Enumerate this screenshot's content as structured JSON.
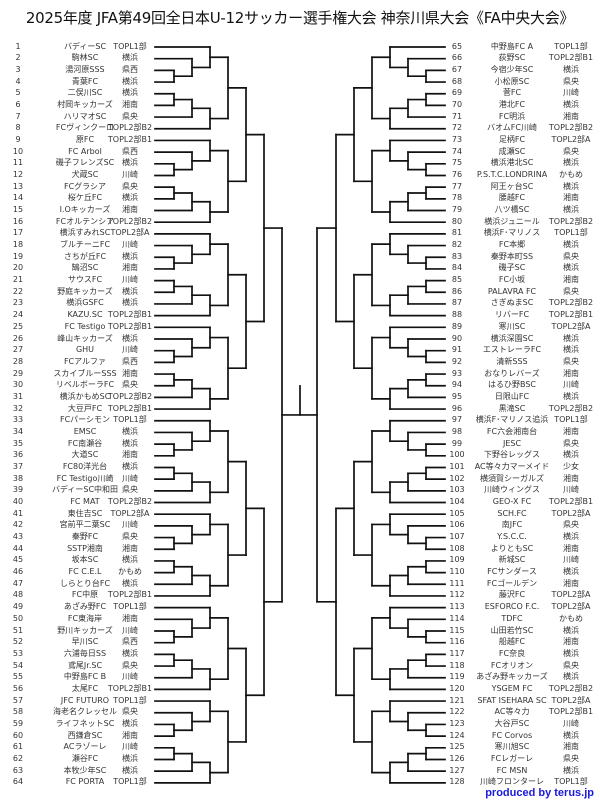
{
  "title": "2025年度 JFA第49回全日本U-12サッカー選手権大会 神奈川県大会《FA中央大会》",
  "footer": "produced by terus.jp",
  "left_teams": [
    {
      "no": "1",
      "name": "バディーSC",
      "league": "TOPL1部"
    },
    {
      "no": "2",
      "name": "駒林SC",
      "league": "横浜"
    },
    {
      "no": "3",
      "name": "湯河原SSS",
      "league": "県西"
    },
    {
      "no": "4",
      "name": "青葉FC",
      "league": "横浜"
    },
    {
      "no": "5",
      "name": "二俣川SC",
      "league": "横浜"
    },
    {
      "no": "6",
      "name": "村岡キッカーズ",
      "league": "湘南"
    },
    {
      "no": "7",
      "name": "ハリマオSC",
      "league": "県央"
    },
    {
      "no": "8",
      "name": "FCヴィンクーロ",
      "league": "TOPL2部B2"
    },
    {
      "no": "9",
      "name": "原FC",
      "league": "TOPL2部B1"
    },
    {
      "no": "10",
      "name": "FC Arbol",
      "league": "県西"
    },
    {
      "no": "11",
      "name": "磯子フレンズSC",
      "league": "横浜"
    },
    {
      "no": "12",
      "name": "犬蔵SC",
      "league": "川崎"
    },
    {
      "no": "13",
      "name": "FCグラシア",
      "league": "県央"
    },
    {
      "no": "14",
      "name": "桜ケ丘FC",
      "league": "横浜"
    },
    {
      "no": "15",
      "name": "I.Oキッカーズ",
      "league": "湘南"
    },
    {
      "no": "16",
      "name": "FCオルテンシア",
      "league": "TOPL2部B2"
    },
    {
      "no": "17",
      "name": "横浜すみれSC",
      "league": "TOPL2部A"
    },
    {
      "no": "18",
      "name": "ブルチーニFC",
      "league": "川崎"
    },
    {
      "no": "19",
      "name": "さちが丘FC",
      "league": "横浜"
    },
    {
      "no": "20",
      "name": "鵠沼SC",
      "league": "湘南"
    },
    {
      "no": "21",
      "name": "サウスFC",
      "league": "川崎"
    },
    {
      "no": "22",
      "name": "野庭キッカーズ",
      "league": "横浜"
    },
    {
      "no": "23",
      "name": "横浜GSFC",
      "league": "横浜"
    },
    {
      "no": "24",
      "name": "KAZU.SC",
      "league": "TOPL2部B1"
    },
    {
      "no": "25",
      "name": "FC Testigo",
      "league": "TOPL2部B1"
    },
    {
      "no": "26",
      "name": "峰山キッカーズ",
      "league": "横浜"
    },
    {
      "no": "27",
      "name": "GHU",
      "league": "川崎"
    },
    {
      "no": "28",
      "name": "FCアルファ",
      "league": "県西"
    },
    {
      "no": "29",
      "name": "スカイブルーSSS",
      "league": "湘南"
    },
    {
      "no": "30",
      "name": "リベルボーラFC",
      "league": "県央"
    },
    {
      "no": "31",
      "name": "横浜かもめSC",
      "league": "TOPL2部B2"
    },
    {
      "no": "32",
      "name": "大豆戸FC",
      "league": "TOPL2部B1"
    },
    {
      "no": "33",
      "name": "FCパーシモン",
      "league": "TOPL1部"
    },
    {
      "no": "34",
      "name": "EMSC",
      "league": "横浜"
    },
    {
      "no": "35",
      "name": "FC南瀬谷",
      "league": "横浜"
    },
    {
      "no": "36",
      "name": "大道SC",
      "league": "湘南"
    },
    {
      "no": "37",
      "name": "FC80洋光台",
      "league": "横浜"
    },
    {
      "no": "38",
      "name": "FC Testigo川崎",
      "league": "川崎"
    },
    {
      "no": "39",
      "name": "バディーSC中和田",
      "league": "県央"
    },
    {
      "no": "40",
      "name": "FC MAT",
      "league": "TOPL2部B2"
    },
    {
      "no": "41",
      "name": "東住吉SC",
      "league": "TOPL2部A"
    },
    {
      "no": "42",
      "name": "宮前平二葉SC",
      "league": "川崎"
    },
    {
      "no": "43",
      "name": "秦野FC",
      "league": "県央"
    },
    {
      "no": "44",
      "name": "SSTP湘南",
      "league": "湘南"
    },
    {
      "no": "45",
      "name": "坂本SC",
      "league": "横浜"
    },
    {
      "no": "46",
      "name": "FC C.E.L",
      "league": "かもめ"
    },
    {
      "no": "47",
      "name": "しらとり台FC",
      "league": "横浜"
    },
    {
      "no": "48",
      "name": "FC中原",
      "league": "TOPL2部B1"
    },
    {
      "no": "49",
      "name": "あざみ野FC",
      "league": "TOPL1部"
    },
    {
      "no": "50",
      "name": "FC東海岸",
      "league": "湘南"
    },
    {
      "no": "51",
      "name": "野川キッカーズ",
      "league": "川崎"
    },
    {
      "no": "52",
      "name": "早川SC",
      "league": "県西"
    },
    {
      "no": "53",
      "name": "六浦毎日SS",
      "league": "横浜"
    },
    {
      "no": "54",
      "name": "鳶尾Jr.SC",
      "league": "県央"
    },
    {
      "no": "55",
      "name": "中野島FC B",
      "league": "川崎"
    },
    {
      "no": "56",
      "name": "太尾FC",
      "league": "TOPL2部B1"
    },
    {
      "no": "57",
      "name": "JFC FUTURO",
      "league": "TOPL1部"
    },
    {
      "no": "58",
      "name": "海老名クレッセル",
      "league": "県央"
    },
    {
      "no": "59",
      "name": "ライフネットSC",
      "league": "横浜"
    },
    {
      "no": "60",
      "name": "西鎌倉SC",
      "league": "湘南"
    },
    {
      "no": "61",
      "name": "ACラゾーレ",
      "league": "川崎"
    },
    {
      "no": "62",
      "name": "瀬谷FC",
      "league": "横浜"
    },
    {
      "no": "63",
      "name": "本牧少年SC",
      "league": "横浜"
    },
    {
      "no": "64",
      "name": "FC PORTA",
      "league": "TOPL1部"
    }
  ],
  "right_teams": [
    {
      "no": "65",
      "name": "中野島FC A",
      "league": "TOPL1部"
    },
    {
      "no": "66",
      "name": "荻野SC",
      "league": "TOPL2部B1"
    },
    {
      "no": "67",
      "name": "今宿少年SC",
      "league": "横浜"
    },
    {
      "no": "68",
      "name": "小松原SC",
      "league": "県央"
    },
    {
      "no": "69",
      "name": "菅FC",
      "league": "川崎"
    },
    {
      "no": "70",
      "name": "港北FC",
      "league": "横浜"
    },
    {
      "no": "71",
      "name": "FC明浜",
      "league": "湘南"
    },
    {
      "no": "72",
      "name": "バオムFC川崎",
      "league": "TOPL2部B2"
    },
    {
      "no": "73",
      "name": "足柄FC",
      "league": "TOPL2部A"
    },
    {
      "no": "74",
      "name": "成瀬SC",
      "league": "県央"
    },
    {
      "no": "75",
      "name": "横浜港北SC",
      "league": "横浜"
    },
    {
      "no": "76",
      "name": "P.S.T.C.LONDRINA",
      "league": "かもめ"
    },
    {
      "no": "77",
      "name": "阿王ヶ台SC",
      "league": "横浜"
    },
    {
      "no": "78",
      "name": "腰越FC",
      "league": "湘南"
    },
    {
      "no": "79",
      "name": "八ツ橋SC",
      "league": "横浜"
    },
    {
      "no": "80",
      "name": "横浜ジュニール",
      "league": "TOPL2部B2"
    },
    {
      "no": "81",
      "name": "横浜F･マリノス",
      "league": "TOPL1部"
    },
    {
      "no": "82",
      "name": "FC本郷",
      "league": "横浜"
    },
    {
      "no": "83",
      "name": "秦野本町SS",
      "league": "県央"
    },
    {
      "no": "84",
      "name": "磯子SC",
      "league": "横浜"
    },
    {
      "no": "85",
      "name": "FC小坂",
      "league": "湘南"
    },
    {
      "no": "86",
      "name": "PALAVRA FC",
      "league": "県央"
    },
    {
      "no": "87",
      "name": "さぎぬまSC",
      "league": "TOPL2部B2"
    },
    {
      "no": "88",
      "name": "リバーFC",
      "league": "TOPL2部B1"
    },
    {
      "no": "89",
      "name": "寒川SC",
      "league": "TOPL2部A"
    },
    {
      "no": "90",
      "name": "横浜深園SC",
      "league": "横浜"
    },
    {
      "no": "91",
      "name": "エストレーラFC",
      "league": "横浜"
    },
    {
      "no": "92",
      "name": "清新SSS",
      "league": "県央"
    },
    {
      "no": "93",
      "name": "おなりレバーズ",
      "league": "湘南"
    },
    {
      "no": "94",
      "name": "はるひ野BSC",
      "league": "川崎"
    },
    {
      "no": "95",
      "name": "日限山FC",
      "league": "横浜"
    },
    {
      "no": "96",
      "name": "黒滝SC",
      "league": "TOPL2部B2"
    },
    {
      "no": "97",
      "name": "横浜F･マリノス追浜",
      "league": "TOPL1部"
    },
    {
      "no": "98",
      "name": "FC六会湘南台",
      "league": "湘南"
    },
    {
      "no": "99",
      "name": "JESC",
      "league": "県央"
    },
    {
      "no": "100",
      "name": "下野谷レッグス",
      "league": "横浜"
    },
    {
      "no": "101",
      "name": "AC等々力マーメイド",
      "league": "少女"
    },
    {
      "no": "102",
      "name": "横須賀シーガルズ",
      "league": "湘南"
    },
    {
      "no": "103",
      "name": "川崎ウィングス",
      "league": "川崎"
    },
    {
      "no": "104",
      "name": "GEO-X FC",
      "league": "TOPL2部B1"
    },
    {
      "no": "105",
      "name": "SCH.FC",
      "league": "TOPL2部A"
    },
    {
      "no": "106",
      "name": "南JFC",
      "league": "県央"
    },
    {
      "no": "107",
      "name": "Y.S.C.C.",
      "league": "横浜"
    },
    {
      "no": "108",
      "name": "よりともSC",
      "league": "湘南"
    },
    {
      "no": "109",
      "name": "新城SC",
      "league": "川崎"
    },
    {
      "no": "110",
      "name": "FCサンダース",
      "league": "横浜"
    },
    {
      "no": "111",
      "name": "FCゴールデン",
      "league": "湘南"
    },
    {
      "no": "112",
      "name": "藤沢FC",
      "league": "TOPL2部A"
    },
    {
      "no": "113",
      "name": "ESFORCO F.C.",
      "league": "TOPL2部A"
    },
    {
      "no": "114",
      "name": "TDFC",
      "league": "かもめ"
    },
    {
      "no": "115",
      "name": "山田若竹SC",
      "league": "横浜"
    },
    {
      "no": "116",
      "name": "船越FC",
      "league": "湘南"
    },
    {
      "no": "117",
      "name": "FC奈良",
      "league": "横浜"
    },
    {
      "no": "118",
      "name": "FCオリオン",
      "league": "県央"
    },
    {
      "no": "119",
      "name": "あざみ野キッカーズ",
      "league": "横浜"
    },
    {
      "no": "120",
      "name": "YSGEM FC",
      "league": "TOPL2部B2"
    },
    {
      "no": "121",
      "name": "SFAT ISEHARA SC",
      "league": "TOPL2部A"
    },
    {
      "no": "122",
      "name": "AC等々力",
      "league": "TOPL2部B1"
    },
    {
      "no": "123",
      "name": "大谷戸SC",
      "league": "川崎"
    },
    {
      "no": "124",
      "name": "FC Corvos",
      "league": "横浜"
    },
    {
      "no": "125",
      "name": "寒川旭SC",
      "league": "湘南"
    },
    {
      "no": "126",
      "name": "FCレガーレ",
      "league": "県央"
    },
    {
      "no": "127",
      "name": "FC MSN",
      "league": "横浜"
    },
    {
      "no": "128",
      "name": "川崎フロンターレ",
      "league": "TOPL1部"
    }
  ]
}
